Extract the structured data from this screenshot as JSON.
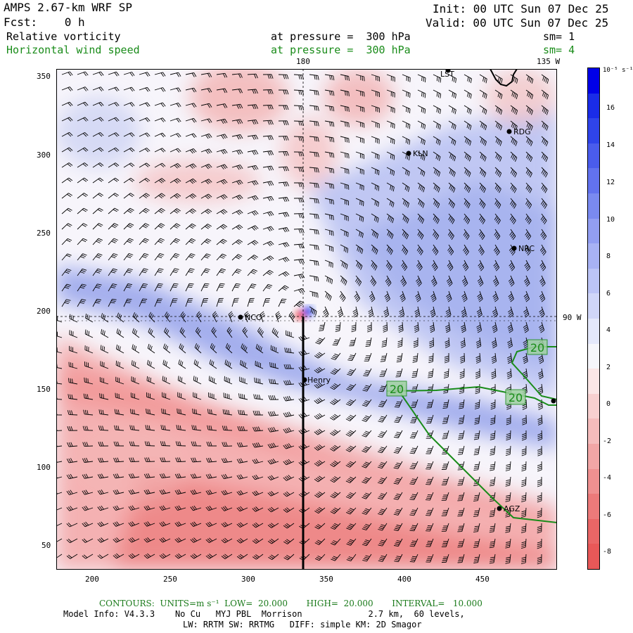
{
  "header": {
    "title": "AMPS 2.67-km WRF SP",
    "forecast": "Fcst:    0 h",
    "init": "Init: 00 UTC Sun 07 Dec 25",
    "valid": "Valid: 00 UTC Sun 07 Dec 25",
    "field1": "Relative vorticity",
    "field1_level": "at pressure =  300 hPa",
    "field1_sm": "sm= 1",
    "field2": "Horizontal wind speed",
    "field2_level": "at pressure =  300 hPa",
    "field2_sm": "sm= 4"
  },
  "map": {
    "lon_labels": [
      "180",
      "135 W",
      "90 W"
    ],
    "x_ticks": [
      "200",
      "250",
      "300",
      "350",
      "400",
      "450"
    ],
    "y_ticks": [
      "350",
      "300",
      "250",
      "200",
      "150",
      "100",
      "50"
    ],
    "stations": [
      "LST",
      "RDG",
      "KLN",
      "NRC",
      "NCO",
      "Henry",
      "AGZ"
    ],
    "contour_labels": [
      "20",
      "20",
      "20"
    ]
  },
  "colorbar": {
    "unit": "10⁻⁵ s⁻¹",
    "ticks": [
      "16",
      "14",
      "12",
      "10",
      "8",
      "6",
      "4",
      "2",
      "0",
      "-2",
      "-4",
      "-6",
      "-8"
    ]
  },
  "footer": {
    "contours": "CONTOURS:  UNITS=m s⁻¹  LOW=  20.000       HIGH=  20.000       INTERVAL=   10.000",
    "model_info": "Model Info: V4.3.3    No Cu   MYJ PBL  Morrison             2.7 km,  60 levels,",
    "physics": "LW: RRTM SW: RRTMG   DIFF: simple KM: 2D Smagor"
  },
  "colors": {
    "positive": "#1f3fe0",
    "negative": "#ef6a6a",
    "contour": "#1a8c1a"
  }
}
